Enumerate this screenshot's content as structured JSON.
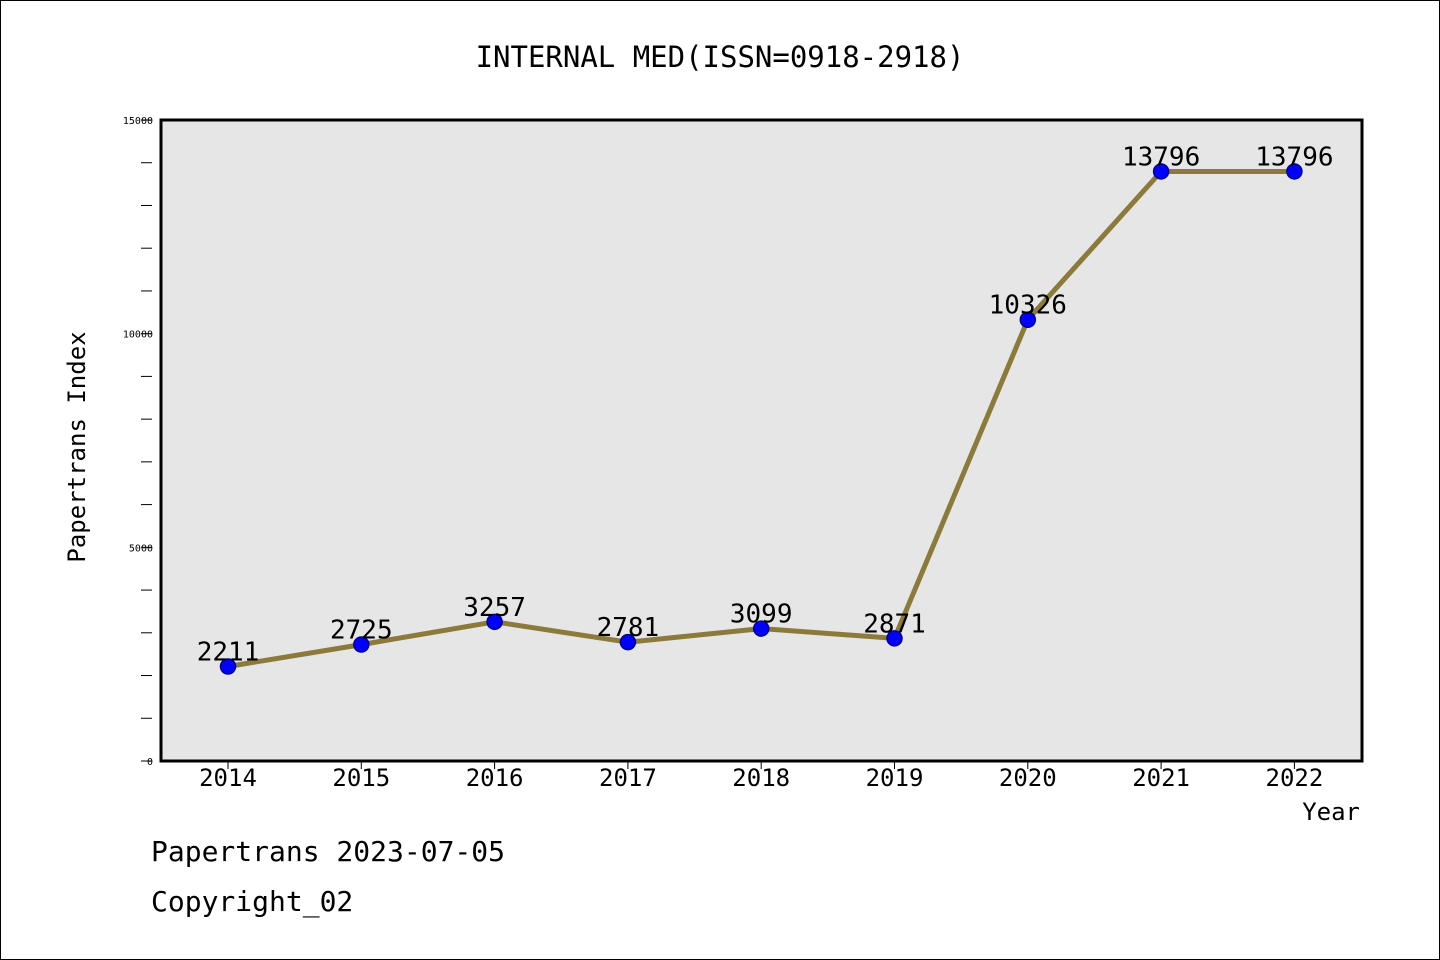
{
  "chart_data": {
    "type": "line",
    "title": "INTERNAL MED(ISSN=0918-2918)",
    "xlabel": "Year",
    "ylabel": "Papertrans Index",
    "categories": [
      "2014",
      "2015",
      "2016",
      "2017",
      "2018",
      "2019",
      "2020",
      "2021",
      "2022"
    ],
    "series": [
      {
        "values": [
          2211,
          2725,
          3257,
          2781,
          3099,
          2871,
          10326,
          13796,
          13796
        ]
      }
    ],
    "ylim": [
      0,
      15000
    ],
    "yticks_major": [
      0,
      5000,
      10000,
      15000
    ],
    "yticks_major_labels": [
      "0",
      "5000",
      "10000",
      "15000"
    ],
    "ytick_minor_step": 1000,
    "grid": false,
    "data_labels": true,
    "colors": {
      "line": "#8b7a3a",
      "marker": "#0000ff",
      "marker_edge": "#00008b",
      "plot_background": "#e6e6e6",
      "page_background": "#ffffff"
    }
  },
  "footer": {
    "line1": "Papertrans 2023-07-05",
    "line2": "Copyright_02"
  }
}
